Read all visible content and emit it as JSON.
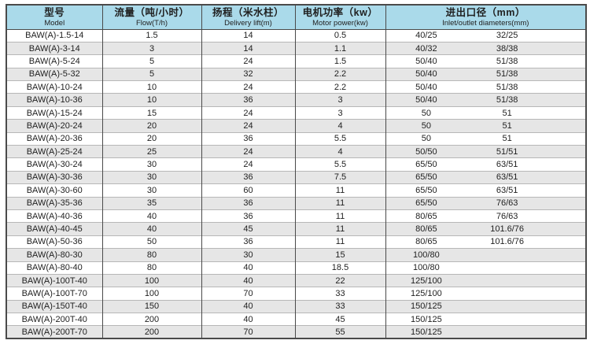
{
  "colors": {
    "header_bg": "#aadaea",
    "stripe": "#e6e6e6",
    "border_dark": "#4a4a4a",
    "row_line": "#b7b7b7",
    "text": "#1f1f1f"
  },
  "table": {
    "columns": [
      {
        "zh": "型号",
        "en": "Model"
      },
      {
        "zh": "流量（吨/小时）",
        "en": "Flow(T/h)"
      },
      {
        "zh": "扬程（米水柱）",
        "en": "Delivery lift(m)"
      },
      {
        "zh": "电机功率（kw）",
        "en": "Motor power(kw)"
      },
      {
        "zh": "进出口径（mm）",
        "en": "Inlet/outlet  diameters(mm)"
      }
    ],
    "rows": [
      [
        "BAW(A)-1.5-14",
        "1.5",
        "14",
        "0.5",
        "40/25",
        "32/25"
      ],
      [
        "BAW(A)-3-14",
        "3",
        "14",
        "1.1",
        "40/32",
        "38/38"
      ],
      [
        "BAW(A)-5-24",
        "5",
        "24",
        "1.5",
        "50/40",
        "51/38"
      ],
      [
        "BAW(A)-5-32",
        "5",
        "32",
        "2.2",
        "50/40",
        "51/38"
      ],
      [
        "BAW(A)-10-24",
        "10",
        "24",
        "2.2",
        "50/40",
        "51/38"
      ],
      [
        "BAW(A)-10-36",
        "10",
        "36",
        "3",
        "50/40",
        "51/38"
      ],
      [
        "BAW(A)-15-24",
        "15",
        "24",
        "3",
        "50",
        "51"
      ],
      [
        "BAW(A)-20-24",
        "20",
        "24",
        "4",
        "50",
        "51"
      ],
      [
        "BAW(A)-20-36",
        "20",
        "36",
        "5.5",
        "50",
        "51"
      ],
      [
        "BAW(A)-25-24",
        "25",
        "24",
        "4",
        "50/50",
        "51/51"
      ],
      [
        "BAW(A)-30-24",
        "30",
        "24",
        "5.5",
        "65/50",
        "63/51"
      ],
      [
        "BAW(A)-30-36",
        "30",
        "36",
        "7.5",
        "65/50",
        "63/51"
      ],
      [
        "BAW(A)-30-60",
        "30",
        "60",
        "11",
        "65/50",
        "63/51"
      ],
      [
        "BAW(A)-35-36",
        "35",
        "36",
        "11",
        "65/50",
        "76/63"
      ],
      [
        "BAW(A)-40-36",
        "40",
        "36",
        "11",
        "80/65",
        "76/63"
      ],
      [
        "BAW(A)-40-45",
        "40",
        "45",
        "11",
        "80/65",
        "101.6/76"
      ],
      [
        "BAW(A)-50-36",
        "50",
        "36",
        "11",
        "80/65",
        "101.6/76"
      ],
      [
        "BAW(A)-80-30",
        "80",
        "30",
        "15",
        "100/80",
        ""
      ],
      [
        "BAW(A)-80-40",
        "80",
        "40",
        "18.5",
        "100/80",
        ""
      ],
      [
        "BAW(A)-100T-40",
        "100",
        "40",
        "22",
        "125/100",
        ""
      ],
      [
        "BAW(A)-100T-70",
        "100",
        "70",
        "33",
        "125/100",
        ""
      ],
      [
        "BAW(A)-150T-40",
        "150",
        "40",
        "33",
        "150/125",
        ""
      ],
      [
        "BAW(A)-200T-40",
        "200",
        "40",
        "45",
        "150/125",
        ""
      ],
      [
        "BAW(A)-200T-70",
        "200",
        "70",
        "55",
        "150/125",
        ""
      ]
    ]
  }
}
